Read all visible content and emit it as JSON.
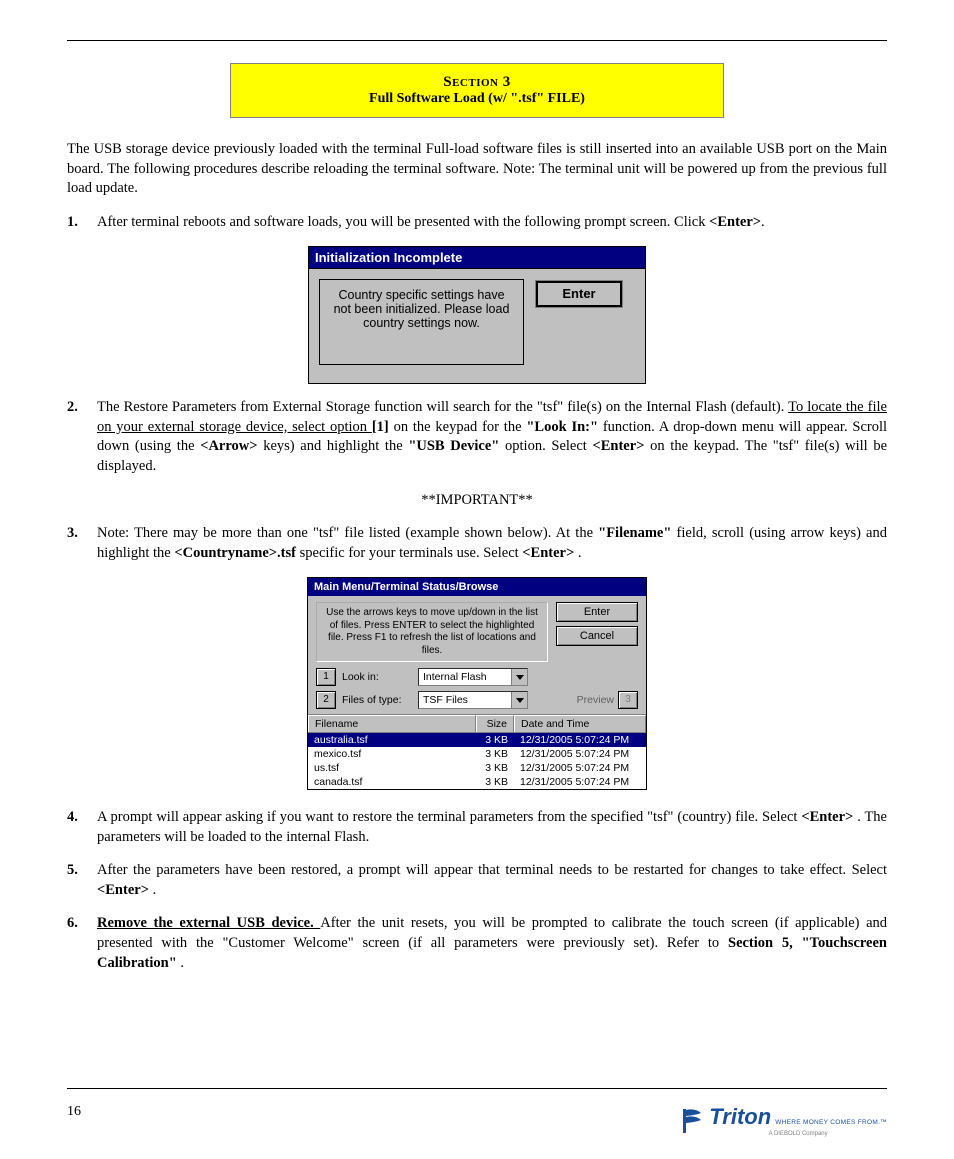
{
  "header": {
    "line1": "Section 3",
    "line2": "Full Software Load (w/ \".tsf\" FILE)"
  },
  "para_intro": "The USB storage device previously loaded with the terminal Full-load software files is still inserted into an available USB port on the Main board. The following procedures describe reloading the terminal software. Note: The terminal unit will be powered up from the previous full load update.",
  "step1_a": "After terminal reboots and software loads, you will be presented with the following prompt screen. Click",
  "step1_enter": " <Enter>",
  "step1_b": ".",
  "dialog1": {
    "title": "Initialization Incomplete",
    "message": "Country specific settings have not been initialized.  Please load country settings now.",
    "button": "Enter"
  },
  "step2_a": "The Restore Parameters from External Storage function will search for the \"tsf\" file(s) on the Internal Flash (default). ",
  "step2_b": "To locate the file on your external storage device, select option ",
  "step2_num": "[1]",
  "step2_c": " on the keypad for the ",
  "step2_lookin": "\"Look In:\"",
  "step2_d": " function. A drop-down menu will appear. Scroll down (using the ",
  "step2_arrow": "<Arrow>",
  "step2_e": " keys) and highlight the ",
  "step2_usb": "\"USB Device\"",
  "step2_f": " option. Select ",
  "step2_enter": "<Enter>",
  "step2_g": " on the keypad. The \"tsf\" file(s) will be displayed.",
  "important_label": "**IMPORTANT**",
  "step3_a": "Note: There may be more than one \"tsf\" file listed (example shown below). At the ",
  "step3_filename": "\"Filename\"",
  "step3_b": " field, scroll (using arrow keys) and highlight the ",
  "step3_c": "<Countryname>.tsf",
  "step3_d": " specific for your terminals use.  Select ",
  "step3_enter": "<Enter>",
  "step3_e": ".",
  "dialog2": {
    "title": "Main Menu/Terminal Status/Browse",
    "instructions": "Use the arrows keys to move up/down in the list of files.  Press ENTER to select the highlighted file. Press F1 to refresh the list of locations and files.",
    "enter": "Enter",
    "cancel": "Cancel",
    "btn1": "1",
    "lookInLabel": "Look in:",
    "lookInValue": "Internal Flash",
    "btn2": "2",
    "filesTypeLabel": "Files of type:",
    "filesTypeValue": "TSF Files",
    "previewLabel": "Preview",
    "btn3": "3",
    "cols": {
      "filename": "Filename",
      "size": "Size",
      "date": "Date and Time"
    },
    "rows": [
      {
        "f": "australia.tsf",
        "s": "3 KB",
        "d": "12/31/2005 5:07:24 PM",
        "sel": true
      },
      {
        "f": "mexico.tsf",
        "s": "3 KB",
        "d": "12/31/2005 5:07:24 PM",
        "sel": false
      },
      {
        "f": "us.tsf",
        "s": "3 KB",
        "d": "12/31/2005 5:07:24 PM",
        "sel": false
      },
      {
        "f": "canada.tsf",
        "s": "3 KB",
        "d": "12/31/2005 5:07:24 PM",
        "sel": false
      }
    ]
  },
  "step4_a": "A prompt will appear asking if you want to restore the terminal parameters from the specified \"tsf\" (country) file.  Select ",
  "step4_enter": "<Enter>",
  "step4_b": ".  The parameters will be loaded to the internal Flash.",
  "step5_a": "After the parameters have been restored, a prompt will appear that terminal needs to be restarted for changes to take effect.  Select ",
  "step5_enter": "<Enter>",
  "step5_b": ".",
  "step6_hdr": "Remove the external USB device. ",
  "step6_a": "After the unit resets, you will be prompted to calibrate the touch screen (if applicable) and presented with the \"Customer Welcome\" screen (if all parameters were previously set). Refer to ",
  "step6_b": "Section 5, \"Touchscreen Calibration\"",
  "step6_c": ".",
  "footer": {
    "pageNumber": "16",
    "logoText": "Triton",
    "logoTag": "WHERE MONEY COMES FROM.™",
    "logoSub": "A DIEBOLD Company"
  }
}
